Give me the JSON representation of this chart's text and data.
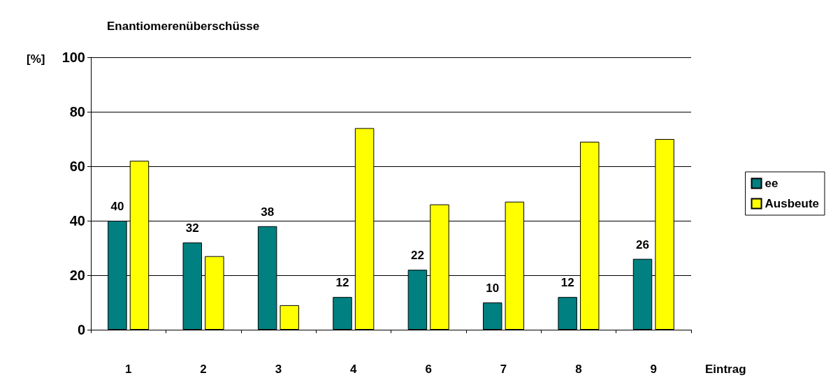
{
  "chart_data": {
    "type": "bar",
    "title": "Enantiomerenüberschüsse",
    "ylabel": "[%]",
    "xlabel": "Eintrag",
    "categories": [
      "1",
      "2",
      "3",
      "4",
      "6",
      "7",
      "8",
      "9"
    ],
    "series": [
      {
        "name": "ee",
        "color": "#008080",
        "values": [
          40,
          32,
          38,
          12,
          22,
          10,
          12,
          26
        ],
        "value_labels": [
          "40",
          "32",
          "38",
          "12",
          "22",
          "10",
          "12",
          "26"
        ]
      },
      {
        "name": "Ausbeute",
        "color": "#ffff00",
        "values": [
          62,
          27,
          9,
          74,
          46,
          47,
          69,
          70
        ]
      }
    ],
    "ylim": [
      0,
      100
    ],
    "yticks": [
      0,
      20,
      40,
      60,
      80,
      100
    ],
    "grid": "y",
    "legend": "right"
  }
}
